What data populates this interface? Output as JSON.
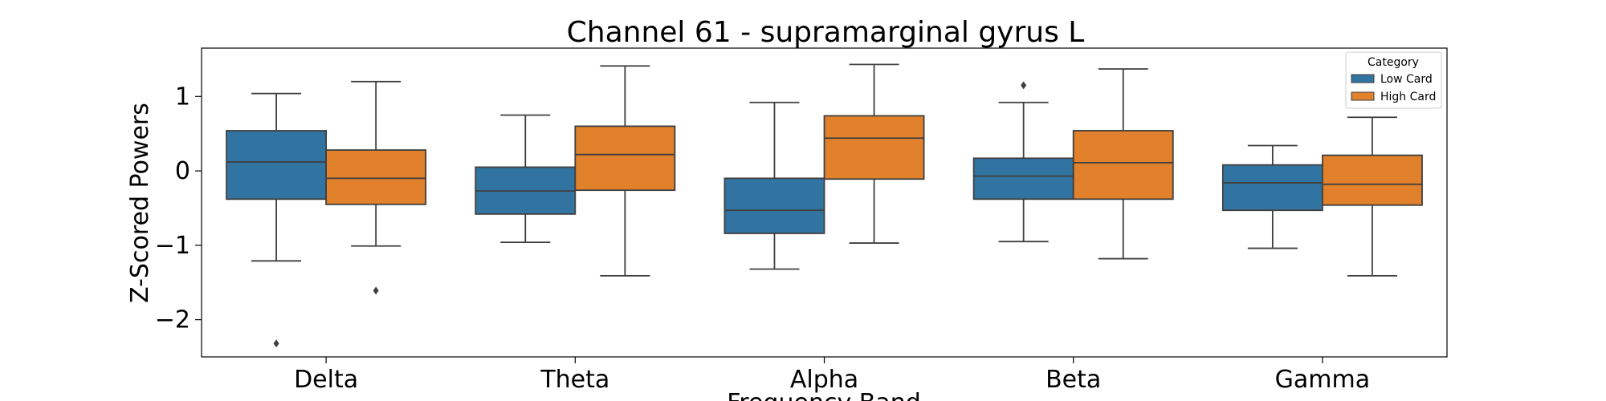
{
  "chart_data": {
    "type": "box",
    "title": "Channel 61 - supramarginal gyrus L",
    "xlabel": "Frequency Band",
    "ylabel": "Z-Scored Powers",
    "ylim": [
      -2.5,
      1.65
    ],
    "yticks": [
      -2,
      -1,
      0,
      1
    ],
    "ytick_labels": [
      "−2",
      "−1",
      "0",
      "1"
    ],
    "categories": [
      "Delta",
      "Theta",
      "Alpha",
      "Beta",
      "Gamma"
    ],
    "legend": {
      "title": "Category",
      "position": "top-right",
      "entries": [
        "Low Card",
        "High Card"
      ]
    },
    "series": [
      {
        "name": "Low Card",
        "color": "#3274a1",
        "boxes": [
          {
            "whisker_low": -1.21,
            "q1": -0.38,
            "median": 0.12,
            "q3": 0.54,
            "whisker_high": 1.04,
            "outliers": [
              -2.32
            ]
          },
          {
            "whisker_low": -0.96,
            "q1": -0.58,
            "median": -0.27,
            "q3": 0.05,
            "whisker_high": 0.75,
            "outliers": []
          },
          {
            "whisker_low": -1.32,
            "q1": -0.84,
            "median": -0.53,
            "q3": -0.1,
            "whisker_high": 0.92,
            "outliers": []
          },
          {
            "whisker_low": -0.95,
            "q1": -0.38,
            "median": -0.07,
            "q3": 0.17,
            "whisker_high": 0.92,
            "outliers": [
              1.15
            ]
          },
          {
            "whisker_low": -1.04,
            "q1": -0.53,
            "median": -0.16,
            "q3": 0.08,
            "whisker_high": 0.34,
            "outliers": []
          }
        ]
      },
      {
        "name": "High Card",
        "color": "#e1812c",
        "boxes": [
          {
            "whisker_low": -1.01,
            "q1": -0.45,
            "median": -0.1,
            "q3": 0.28,
            "whisker_high": 1.2,
            "outliers": [
              -1.61
            ]
          },
          {
            "whisker_low": -1.41,
            "q1": -0.26,
            "median": 0.22,
            "q3": 0.6,
            "whisker_high": 1.41,
            "outliers": []
          },
          {
            "whisker_low": -0.97,
            "q1": -0.11,
            "median": 0.44,
            "q3": 0.74,
            "whisker_high": 1.43,
            "outliers": []
          },
          {
            "whisker_low": -1.18,
            "q1": -0.38,
            "median": 0.11,
            "q3": 0.54,
            "whisker_high": 1.37,
            "outliers": []
          },
          {
            "whisker_low": -1.41,
            "q1": -0.46,
            "median": -0.18,
            "q3": 0.21,
            "whisker_high": 0.72,
            "outliers": []
          }
        ]
      }
    ],
    "grid": false
  }
}
